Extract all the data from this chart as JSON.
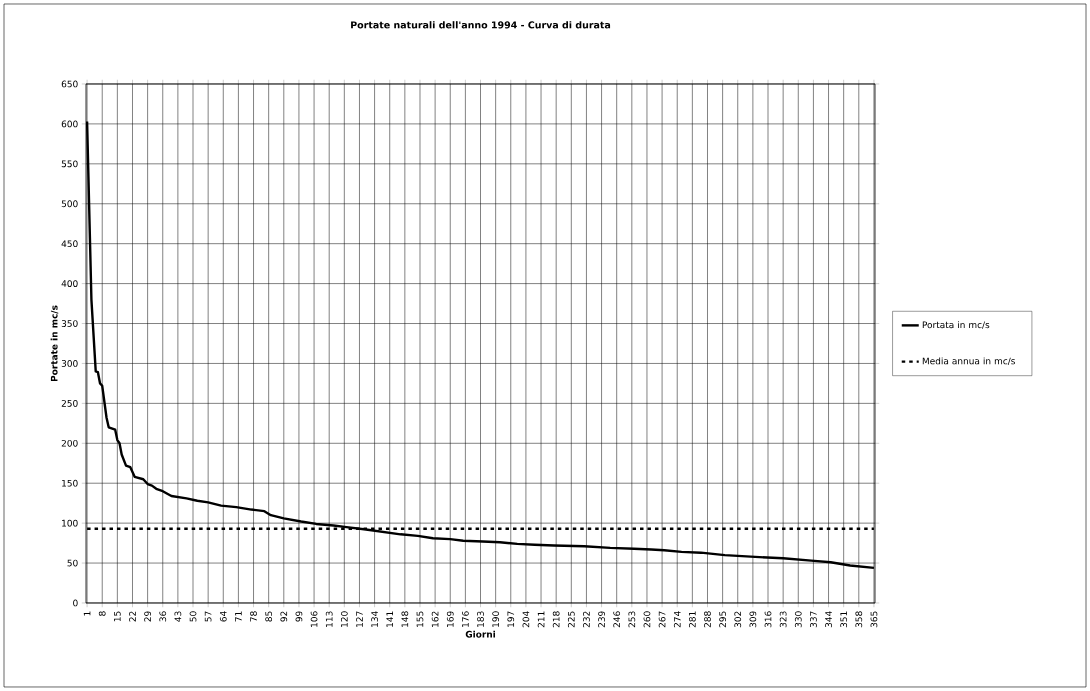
{
  "chart_data": {
    "type": "line",
    "title": "Portate naturali dell'anno 1994 - Curva di durata",
    "xlabel": "Giorni",
    "ylabel": "Portate in mc/s",
    "xlim": [
      0.5,
      365.5
    ],
    "ylim": [
      0,
      650
    ],
    "xticks": [
      1,
      8,
      15,
      22,
      29,
      36,
      43,
      50,
      57,
      64,
      71,
      78,
      85,
      92,
      99,
      106,
      113,
      120,
      127,
      134,
      141,
      148,
      155,
      162,
      169,
      176,
      183,
      190,
      197,
      204,
      211,
      218,
      225,
      232,
      239,
      246,
      253,
      260,
      267,
      274,
      281,
      288,
      295,
      302,
      309,
      316,
      323,
      330,
      337,
      344,
      351,
      358,
      365
    ],
    "yticks": [
      0,
      50,
      100,
      150,
      200,
      250,
      300,
      350,
      400,
      450,
      500,
      550,
      600,
      650
    ],
    "grid": true,
    "legend": "right",
    "series": [
      {
        "name": "Portata in  mc/s",
        "color": "#000000",
        "line_style": "solid",
        "x": [
          1,
          3,
          5,
          6,
          7,
          8,
          10,
          11,
          14,
          15,
          16,
          17,
          19,
          21,
          23,
          27,
          29,
          31,
          33,
          36,
          40,
          47,
          52,
          57,
          63,
          70,
          77,
          83,
          86,
          92,
          100,
          107,
          115,
          121,
          130,
          138,
          146,
          154,
          161,
          169,
          175,
          184,
          192,
          200,
          208,
          217,
          231,
          243,
          254,
          262,
          268,
          276,
          285,
          296,
          308,
          323,
          336,
          345,
          354,
          365
        ],
        "values": [
          603,
          380,
          290,
          289,
          275,
          272,
          232,
          220,
          217,
          204,
          200,
          186,
          172,
          170,
          158,
          155,
          149,
          147,
          143,
          140,
          134,
          131,
          128,
          126,
          122,
          120,
          117,
          115,
          110,
          106,
          102,
          99,
          97,
          95,
          92,
          89,
          86,
          84,
          81,
          80,
          78,
          77,
          76,
          74,
          73,
          72,
          71,
          69,
          68,
          67,
          66,
          64,
          63,
          60,
          58,
          56,
          53,
          51,
          47,
          44
        ]
      },
      {
        "name": "Media annua in mc/s",
        "color": "#000000",
        "line_style": "dotted",
        "x": [
          1,
          365
        ],
        "values": [
          93,
          93
        ]
      }
    ]
  }
}
